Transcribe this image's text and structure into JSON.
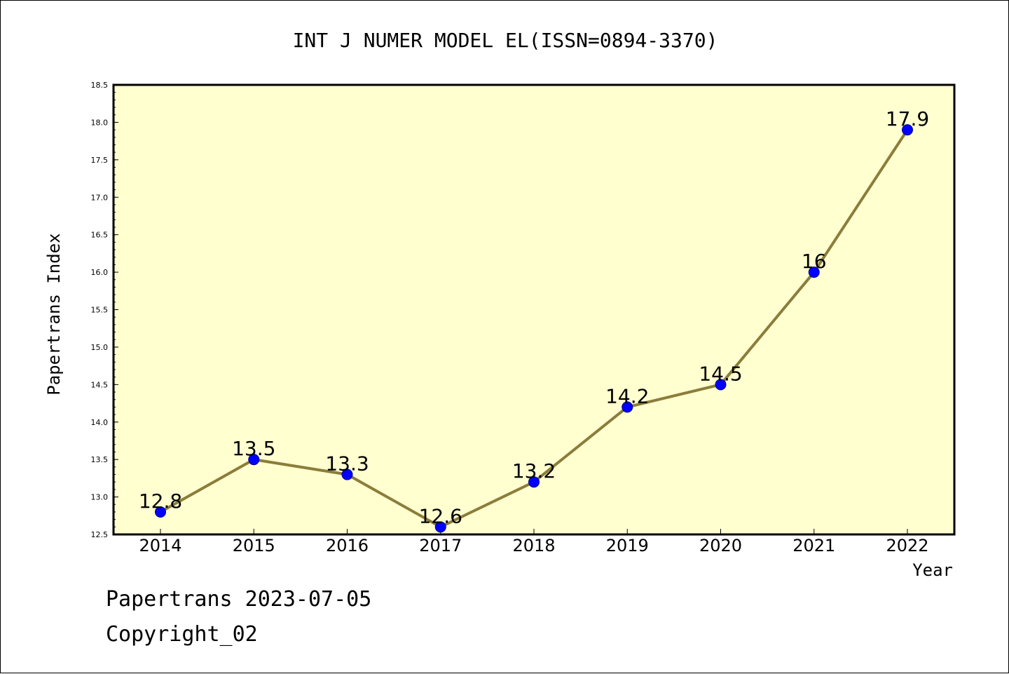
{
  "colors": {
    "plot_background": "#ffffd0",
    "line": "#8b7d3a",
    "marker_fill": "#0000ff",
    "marker_stroke": "#00008b",
    "text": "#000000"
  },
  "footer": {
    "line1": "Papertrans 2023-07-05",
    "line2": "Copyright_02"
  },
  "chart_data": {
    "type": "line",
    "title": "INT J NUMER MODEL EL(ISSN=0894-3370)",
    "xlabel": "Year",
    "ylabel": "Papertrans Index",
    "x": [
      "2014",
      "2015",
      "2016",
      "2017",
      "2018",
      "2019",
      "2020",
      "2021",
      "2022"
    ],
    "series": [
      {
        "values": [
          12.8,
          13.5,
          13.3,
          12.6,
          13.2,
          14.2,
          14.5,
          16,
          17.9
        ],
        "data_labels": [
          "12.8",
          "13.5",
          "13.3",
          "12.6",
          "13.2",
          "14.2",
          "14.5",
          "16",
          "17.9"
        ]
      }
    ],
    "ylim": [
      12.5,
      18.5
    ],
    "yticks": [
      12.5,
      13.0,
      13.5,
      14.0,
      14.5,
      15.0,
      15.5,
      16.0,
      16.5,
      17.0,
      17.5,
      18.0,
      18.5
    ],
    "ytick_labels": [
      "12.5",
      "13.0",
      "13.5",
      "14.0",
      "14.5",
      "15.0",
      "15.5",
      "16.0",
      "16.5",
      "17.0",
      "17.5",
      "18.0",
      "18.5"
    ],
    "grid": false,
    "legend": "none"
  }
}
